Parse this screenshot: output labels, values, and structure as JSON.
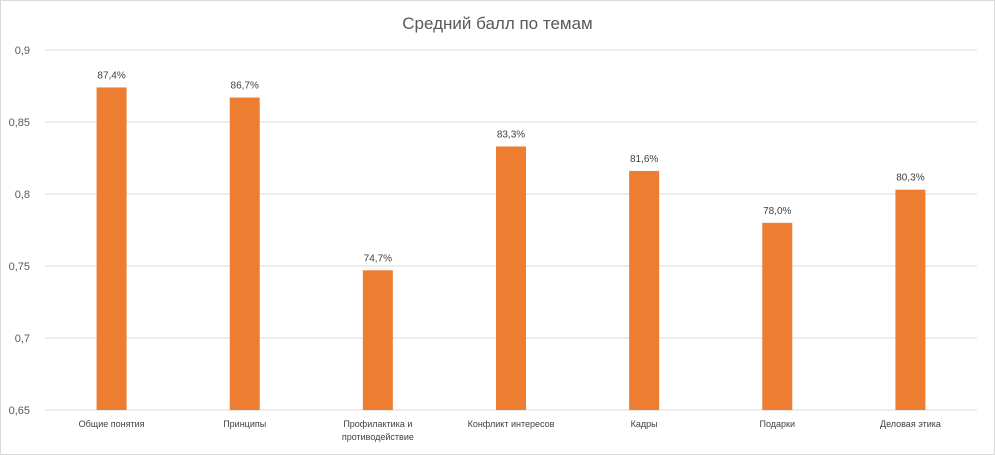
{
  "chart_data": {
    "type": "bar",
    "title": "Средний балл по темам",
    "xlabel": "",
    "ylabel": "",
    "ylim": [
      0.65,
      0.9
    ],
    "y_ticks": [
      0.65,
      0.7,
      0.75,
      0.8,
      0.85,
      0.9
    ],
    "y_tick_labels": [
      "0,65",
      "0,7",
      "0,75",
      "0,8",
      "0,85",
      "0,9"
    ],
    "grid": true,
    "legend": "none",
    "categories": [
      [
        "Общие понятия"
      ],
      [
        "Принципы"
      ],
      [
        "Профилактика и",
        "противодействие"
      ],
      [
        "Конфликт интересов"
      ],
      [
        "Кадры"
      ],
      [
        "Подарки"
      ],
      [
        "Деловая этика"
      ]
    ],
    "values": [
      0.874,
      0.867,
      0.747,
      0.833,
      0.816,
      0.78,
      0.803
    ],
    "data_labels": [
      "87,4%",
      "86,7%",
      "74,7%",
      "83,3%",
      "81,6%",
      "78,0%",
      "80,3%"
    ],
    "colors": {
      "bar": "#ed7d31",
      "grid": "#d9d9d9",
      "text": "#595959"
    }
  }
}
